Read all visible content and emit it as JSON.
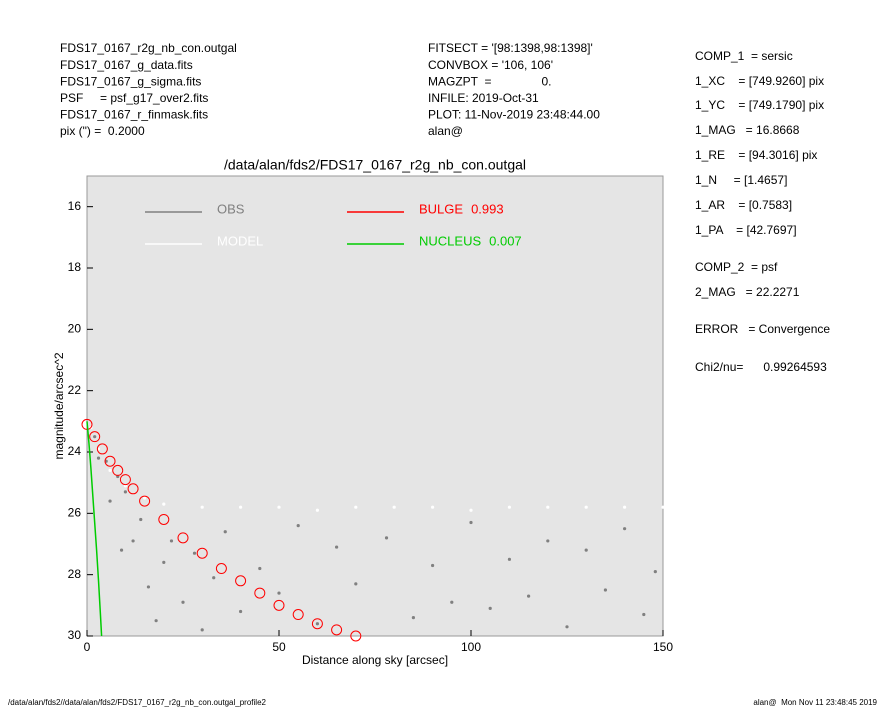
{
  "header": {
    "left": [
      "FDS17_0167_r2g_nb_con.outgal",
      "FDS17_0167_g_data.fits",
      "FDS17_0167_g_sigma.fits",
      "PSF     = psf_g17_over2.fits",
      "FDS17_0167_r_finmask.fits",
      "pix (\") =  0.2000"
    ],
    "middle": [
      "FITSECT = '[98:1398,98:1398]'",
      "CONVBOX = '106, 106'",
      "MAGZPT  =               0.",
      "INFILE: 2019-Oct-31",
      "PLOT: 11-Nov-2019 23:48:44.00",
      "alan@"
    ],
    "right": [
      "COMP_1  = sersic",
      "1_XC    = [749.9260] pix",
      "1_YC    = [749.1790] pix",
      "1_MAG   = 16.8668",
      "1_RE    = [94.3016] pix",
      "1_N     = [1.4657]",
      "1_AR    = [0.7583]",
      "1_PA    = [42.7697]",
      "COMP_2  = psf",
      "2_MAG   = 22.2271",
      "ERROR   = Convergence",
      "Chi2/nu=      0.99264593"
    ]
  },
  "footer": {
    "left": "/data/alan/fds2//data/alan/fds2/FDS17_0167_r2g_nb_con.outgal_profile2",
    "right": "alan@  Mon Nov 11 23:48:45 2019"
  },
  "chart_data": {
    "type": "scatter",
    "title": "/data/alan/fds2/FDS17_0167_r2g_nb_con.outgal",
    "x_label": "Distance along sky [arcsec]",
    "y_label": "magnitude/arcsec^2",
    "xlim": [
      0,
      150
    ],
    "xticks": [
      0,
      50,
      100,
      150
    ],
    "ylim": [
      30,
      15
    ],
    "yticks": [
      16,
      18,
      20,
      22,
      24,
      26,
      28,
      30
    ],
    "series": [
      {
        "name": "OBS",
        "color": "#808080",
        "mode": "points",
        "x": [
          2,
          3,
          5,
          6,
          8,
          9,
          10,
          12,
          14,
          16,
          18,
          20,
          22,
          25,
          28,
          30,
          33,
          36,
          40,
          45,
          50,
          55,
          60,
          65,
          70,
          78,
          85,
          90,
          95,
          100,
          105,
          110,
          115,
          120,
          125,
          130,
          135,
          140,
          145,
          148
        ],
        "values": [
          23.5,
          24.2,
          24.3,
          25.6,
          24.8,
          27.2,
          25.3,
          26.9,
          26.2,
          28.4,
          29.5,
          27.6,
          26.9,
          28.9,
          27.3,
          29.8,
          28.1,
          26.6,
          29.2,
          27.8,
          28.6,
          26.4,
          29.6,
          27.1,
          28.3,
          26.8,
          29.4,
          27.7,
          28.9,
          26.3,
          29.1,
          27.5,
          28.7,
          26.9,
          29.7,
          27.2,
          28.5,
          26.5,
          29.3,
          27.9
        ]
      },
      {
        "name": "MODEL",
        "color": "#ffffff",
        "mode": "points",
        "x": [
          1,
          3,
          6,
          10,
          15,
          20,
          30,
          40,
          50,
          60,
          70,
          80,
          90,
          100,
          110,
          120,
          130,
          140,
          150
        ],
        "values": [
          23.2,
          23.9,
          24.6,
          25.1,
          25.5,
          25.7,
          25.8,
          25.8,
          25.8,
          25.9,
          25.8,
          25.8,
          25.8,
          25.9,
          25.8,
          25.8,
          25.8,
          25.8,
          25.8
        ]
      },
      {
        "name": "BULGE",
        "fraction": 0.993,
        "color": "#ff0000",
        "mode": "circles",
        "x": [
          0,
          2,
          4,
          6,
          8,
          10,
          12,
          15,
          20,
          25,
          30,
          35,
          40,
          45,
          50,
          55,
          60,
          65,
          70
        ],
        "values": [
          23.1,
          23.5,
          23.9,
          24.3,
          24.6,
          24.9,
          25.2,
          25.6,
          26.2,
          26.8,
          27.3,
          27.8,
          28.2,
          28.6,
          29.0,
          29.3,
          29.6,
          29.8,
          30.0
        ]
      },
      {
        "name": "NUCLEUS",
        "fraction": 0.007,
        "color": "#00cc00",
        "mode": "line",
        "x": [
          0,
          0.5,
          1,
          1.5,
          2,
          2.5,
          3,
          3.5,
          3.8
        ],
        "values": [
          23.0,
          23.7,
          24.5,
          25.4,
          26.3,
          27.2,
          28.2,
          29.3,
          30.0
        ]
      }
    ]
  }
}
